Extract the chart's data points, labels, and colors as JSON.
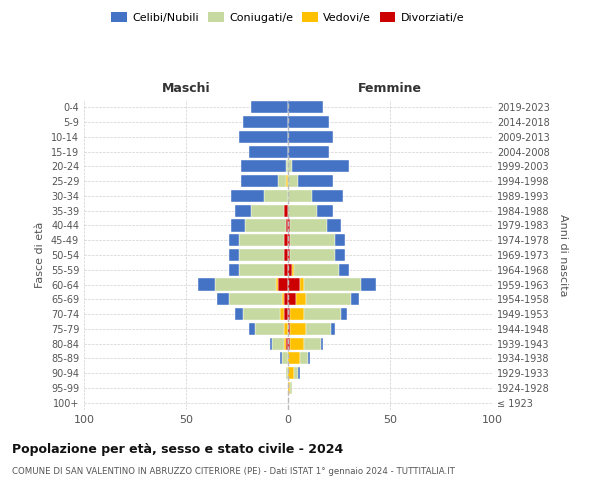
{
  "age_groups": [
    "100+",
    "95-99",
    "90-94",
    "85-89",
    "80-84",
    "75-79",
    "70-74",
    "65-69",
    "60-64",
    "55-59",
    "50-54",
    "45-49",
    "40-44",
    "35-39",
    "30-34",
    "25-29",
    "20-24",
    "15-19",
    "10-14",
    "5-9",
    "0-4"
  ],
  "birth_years": [
    "≤ 1923",
    "1924-1928",
    "1929-1933",
    "1934-1938",
    "1939-1943",
    "1944-1948",
    "1949-1953",
    "1954-1958",
    "1959-1963",
    "1964-1968",
    "1969-1973",
    "1974-1978",
    "1979-1983",
    "1984-1988",
    "1989-1993",
    "1994-1998",
    "1999-2003",
    "2004-2008",
    "2009-2013",
    "2014-2018",
    "2019-2023"
  ],
  "colors": {
    "celibi": "#4472C4",
    "coniugati": "#c5d9a0",
    "vedovi": "#ffc000",
    "divorziati": "#cc0000"
  },
  "males": {
    "celibi": [
      0,
      0,
      0,
      1,
      1,
      3,
      4,
      6,
      8,
      5,
      5,
      5,
      7,
      8,
      16,
      18,
      22,
      19,
      24,
      22,
      18
    ],
    "coniugati": [
      0,
      0,
      1,
      3,
      6,
      14,
      18,
      26,
      30,
      22,
      22,
      22,
      20,
      16,
      12,
      4,
      1,
      0,
      0,
      0,
      0
    ],
    "vedovi": [
      0,
      0,
      0,
      0,
      1,
      2,
      2,
      1,
      1,
      0,
      0,
      0,
      0,
      0,
      0,
      1,
      0,
      0,
      0,
      0,
      0
    ],
    "divorziati": [
      0,
      0,
      0,
      0,
      1,
      0,
      2,
      2,
      5,
      2,
      2,
      2,
      1,
      2,
      0,
      0,
      0,
      0,
      0,
      0,
      0
    ]
  },
  "females": {
    "nubili": [
      0,
      0,
      1,
      1,
      1,
      2,
      3,
      4,
      7,
      5,
      5,
      5,
      7,
      8,
      15,
      17,
      28,
      20,
      22,
      20,
      17
    ],
    "coniugate": [
      0,
      1,
      2,
      4,
      8,
      12,
      18,
      22,
      28,
      22,
      22,
      22,
      18,
      14,
      12,
      5,
      2,
      0,
      0,
      0,
      0
    ],
    "vedove": [
      0,
      1,
      3,
      6,
      7,
      8,
      7,
      5,
      2,
      1,
      0,
      0,
      0,
      0,
      0,
      0,
      0,
      0,
      0,
      0,
      0
    ],
    "divorziate": [
      0,
      0,
      0,
      0,
      1,
      1,
      1,
      4,
      6,
      2,
      1,
      1,
      1,
      0,
      0,
      0,
      0,
      0,
      0,
      0,
      0
    ]
  },
  "xlim": 100,
  "title": "Popolazione per età, sesso e stato civile - 2024",
  "subtitle": "COMUNE DI SAN VALENTINO IN ABRUZZO CITERIORE (PE) - Dati ISTAT 1° gennaio 2024 - TUTTITALIA.IT",
  "ylabel_left": "Fasce di età",
  "ylabel_right": "Anni di nascita",
  "xlabel_left": "Maschi",
  "xlabel_right": "Femmine",
  "bg_color": "#ffffff",
  "grid_color": "#cccccc",
  "axis_color": "#888888"
}
